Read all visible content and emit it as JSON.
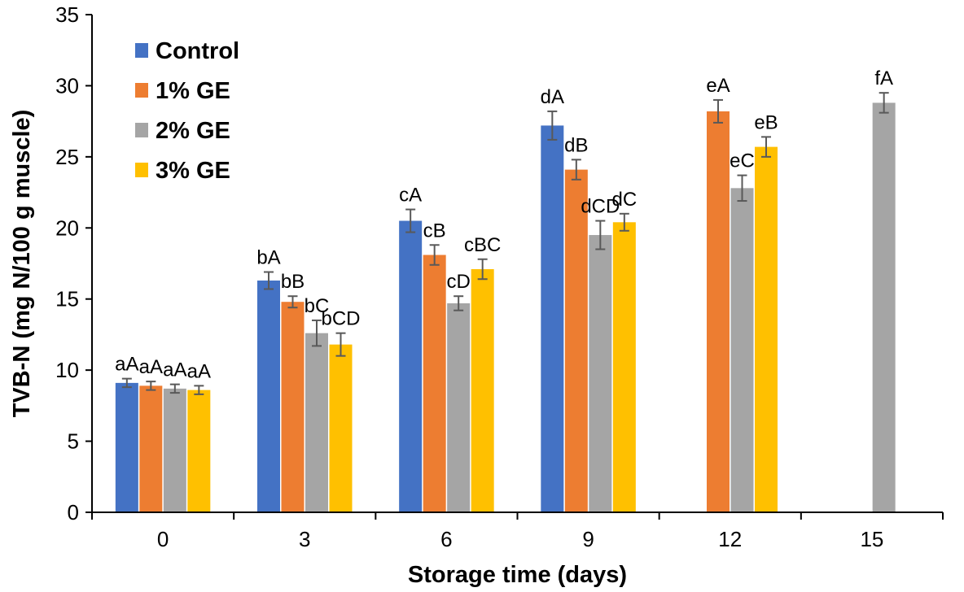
{
  "chart_data": {
    "type": "bar",
    "xlabel": "Storage time (days)",
    "ylabel": "TVB-N (mg N/100 g muscle)",
    "ylim": [
      0,
      35
    ],
    "yticks": [
      "0",
      "5",
      "10",
      "15",
      "20",
      "25",
      "30",
      "35"
    ],
    "categories": [
      "0",
      "3",
      "6",
      "9",
      "12",
      "15"
    ],
    "legend_position": "top-left",
    "grid": false,
    "series": [
      {
        "name": "Control",
        "color": "#4472C4",
        "values": [
          9.1,
          16.3,
          20.5,
          27.2,
          null,
          null
        ],
        "errors": [
          0.3,
          0.6,
          0.8,
          1.0,
          null,
          null
        ],
        "labels": [
          "aA",
          "bA",
          "cA",
          "dA",
          null,
          null
        ]
      },
      {
        "name": "1% GE",
        "color": "#ED7D31",
        "values": [
          8.9,
          14.8,
          18.1,
          24.1,
          28.2,
          null
        ],
        "errors": [
          0.3,
          0.4,
          0.7,
          0.7,
          0.8,
          null
        ],
        "labels": [
          "aA",
          "bB",
          "cB",
          "dB",
          "eA",
          null
        ]
      },
      {
        "name": "2% GE",
        "color": "#A5A5A5",
        "values": [
          8.7,
          12.6,
          14.7,
          19.5,
          22.8,
          28.8
        ],
        "errors": [
          0.3,
          0.9,
          0.5,
          1.0,
          0.9,
          0.7
        ],
        "labels": [
          "aA",
          "bC",
          "cD",
          "dCD",
          "eC",
          "fA"
        ]
      },
      {
        "name": "3% GE",
        "color": "#FFC000",
        "values": [
          8.6,
          11.8,
          17.1,
          20.4,
          25.7,
          null
        ],
        "errors": [
          0.3,
          0.8,
          0.7,
          0.6,
          0.7,
          null
        ],
        "labels": [
          "aA",
          "bCD",
          "cBC",
          "dC",
          "eB",
          null
        ]
      }
    ]
  }
}
